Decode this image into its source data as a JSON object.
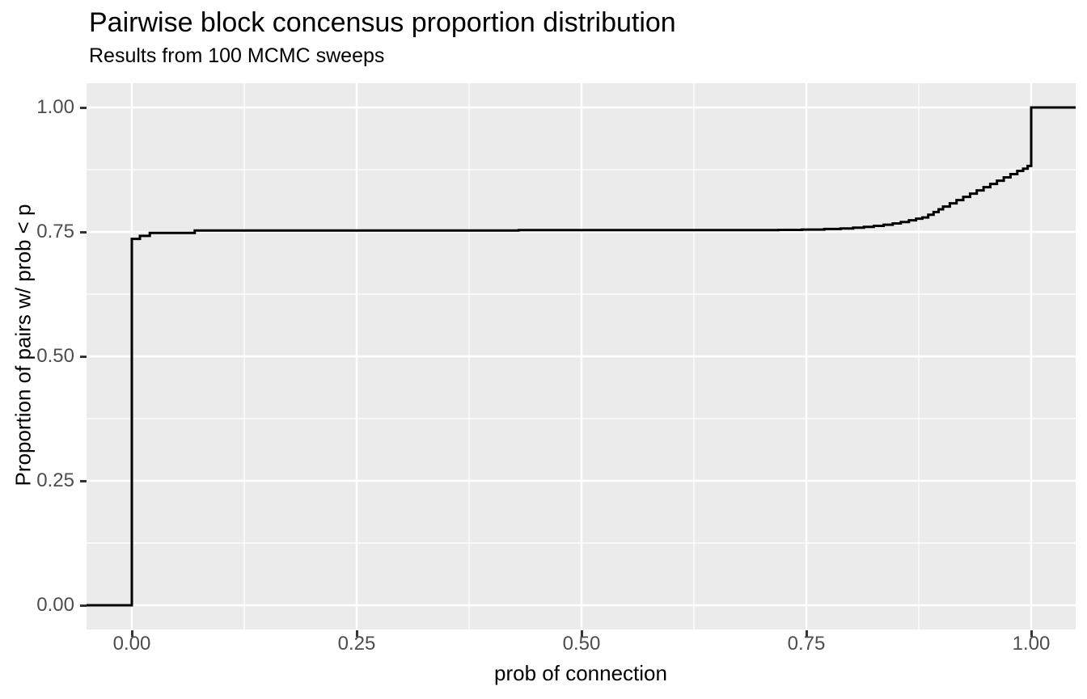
{
  "chart_data": {
    "type": "line",
    "subtype": "ecdf-step",
    "title": "Pairwise block concensus proportion distribution",
    "subtitle": "Results from 100 MCMC sweeps",
    "xlabel": "prob of connection",
    "ylabel": "Proportion of pairs w/ prob < p",
    "xlim": [
      -0.0504,
      1.0495
    ],
    "ylim": [
      -0.05,
      1.05
    ],
    "grid": true,
    "legend": "none",
    "x_ticks": [
      {
        "value": 0.0,
        "label": "0.00"
      },
      {
        "value": 0.25,
        "label": "0.25"
      },
      {
        "value": 0.5,
        "label": "0.50"
      },
      {
        "value": 0.75,
        "label": "0.75"
      },
      {
        "value": 1.0,
        "label": "1.00"
      }
    ],
    "y_ticks": [
      {
        "value": 0.0,
        "label": "0.00"
      },
      {
        "value": 0.25,
        "label": "0.25"
      },
      {
        "value": 0.5,
        "label": "0.50"
      },
      {
        "value": 0.75,
        "label": "0.75"
      },
      {
        "value": 1.0,
        "label": "1.00"
      }
    ],
    "x_minor_ticks": [
      0.125,
      0.375,
      0.625,
      0.875
    ],
    "y_minor_ticks": [
      0.125,
      0.375,
      0.625,
      0.875
    ],
    "ecdf_steps": [
      [
        0.0,
        0.736
      ],
      [
        0.009,
        0.742
      ],
      [
        0.02,
        0.748
      ],
      [
        0.07,
        0.753
      ],
      [
        0.43,
        0.7535
      ],
      [
        0.719,
        0.754
      ],
      [
        0.745,
        0.7547
      ],
      [
        0.77,
        0.7558
      ],
      [
        0.788,
        0.757
      ],
      [
        0.802,
        0.7585
      ],
      [
        0.814,
        0.7602
      ],
      [
        0.825,
        0.7622
      ],
      [
        0.836,
        0.7645
      ],
      [
        0.846,
        0.767
      ],
      [
        0.855,
        0.77
      ],
      [
        0.864,
        0.7733
      ],
      [
        0.872,
        0.7767
      ],
      [
        0.879,
        0.779
      ],
      [
        0.8855,
        0.7845
      ],
      [
        0.8915,
        0.79
      ],
      [
        0.897,
        0.7955
      ],
      [
        0.902,
        0.801
      ],
      [
        0.9095,
        0.8075
      ],
      [
        0.917,
        0.814
      ],
      [
        0.9245,
        0.8205
      ],
      [
        0.932,
        0.827
      ],
      [
        0.9395,
        0.8335
      ],
      [
        0.947,
        0.84
      ],
      [
        0.9545,
        0.8465
      ],
      [
        0.962,
        0.853
      ],
      [
        0.9695,
        0.8595
      ],
      [
        0.977,
        0.866
      ],
      [
        0.9845,
        0.8725
      ],
      [
        0.991,
        0.877
      ],
      [
        0.996,
        0.8825
      ],
      [
        1.0,
        1.0
      ]
    ],
    "colors": {
      "line": "#000000",
      "panel_background": "#EBEBEB",
      "grid_major": "#FFFFFF",
      "grid_minor": "#FFFFFF",
      "tick_mark": "#333333",
      "tick_label": "#4d4d4d",
      "title_text": "#000000",
      "figure_background": "#FFFFFF"
    }
  }
}
